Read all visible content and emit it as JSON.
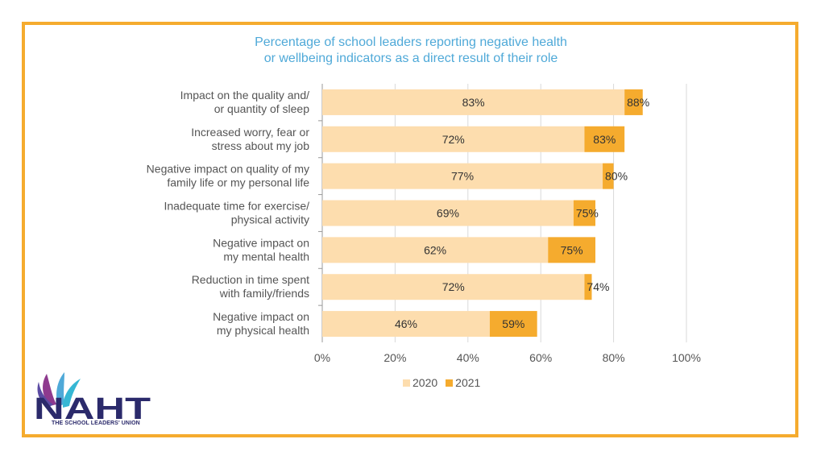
{
  "chart_data": {
    "type": "bar",
    "orientation": "horizontal",
    "title": "Percentage of school leaders reporting negative health or wellbeing indicators as a direct result of their role",
    "title_lines": [
      "Percentage of school leaders reporting negative health",
      "or wellbeing indicators as a direct result of their role"
    ],
    "categories": [
      [
        "Impact on the quality and/",
        "or quantity of sleep"
      ],
      [
        "Increased worry, fear or",
        "stress about my job"
      ],
      [
        "Negative impact on quality of my",
        "family life or my personal life"
      ],
      [
        "Inadequate time for exercise/",
        "physical activity"
      ],
      [
        "Negative impact on",
        "my mental health"
      ],
      [
        "Reduction in time spent",
        "with family/friends"
      ],
      [
        "Negative impact on",
        "my physical health"
      ]
    ],
    "series": [
      {
        "name": "2020",
        "values": [
          83,
          72,
          77,
          69,
          62,
          72,
          46
        ],
        "color": "#FDDDAE"
      },
      {
        "name": "2021",
        "values": [
          88,
          83,
          80,
          75,
          75,
          74,
          59
        ],
        "color": "#F5AB2E"
      }
    ],
    "value_labels_2020": [
      "83%",
      "72%",
      "77%",
      "69%",
      "62%",
      "72%",
      "46%"
    ],
    "value_labels_2021": [
      "88%",
      "83%",
      "80%",
      "75%",
      "75%",
      "74%",
      "59%"
    ],
    "xlim": [
      0,
      100
    ],
    "x_ticks": [
      "0%",
      "20%",
      "40%",
      "60%",
      "80%",
      "100%"
    ],
    "grid": true,
    "legend_position": "bottom"
  },
  "colors": {
    "frame": "#F5AB2E",
    "title": "#4FA9D8",
    "grid": "#D9D9D9"
  },
  "logo": {
    "name": "NAHT",
    "tagline": "THE SCHOOL LEADERS' UNION"
  }
}
